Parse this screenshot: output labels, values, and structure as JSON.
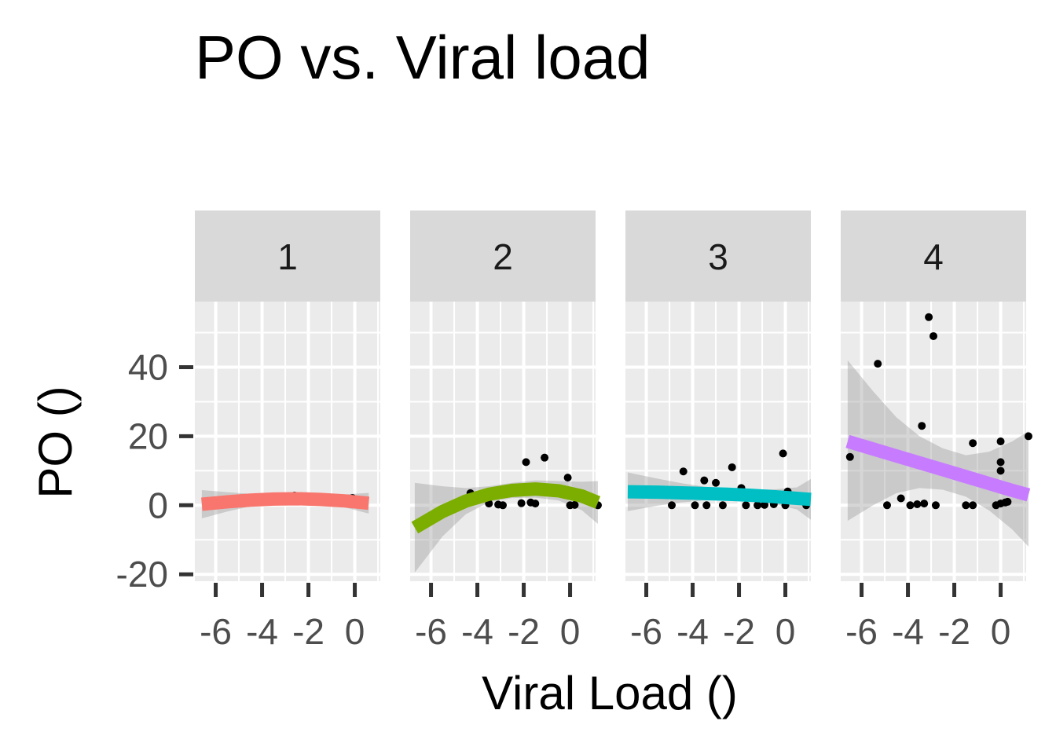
{
  "chart_data": {
    "type": "scatter",
    "title": "PO vs. Viral load",
    "xlabel": "Viral Load ()",
    "ylabel": "PO ()",
    "xlim": [
      -6.9,
      1.1
    ],
    "ylim": [
      -22,
      59
    ],
    "x_ticks": [
      -6,
      -4,
      -2,
      0
    ],
    "y_ticks": [
      -20,
      0,
      20,
      40
    ],
    "grid": true,
    "facets": [
      {
        "label": "1",
        "color": "#F8766D",
        "points": [
          [
            -3.9,
            2.2
          ],
          [
            -2.6,
            2.8
          ],
          [
            -2.1,
            2.6
          ],
          [
            -0.1,
            2.1
          ]
        ],
        "fit": [
          [
            -6.6,
            0.3
          ],
          [
            -5.5,
            1.0
          ],
          [
            -4.5,
            1.5
          ],
          [
            -3.5,
            1.8
          ],
          [
            -2.5,
            1.9
          ],
          [
            -1.5,
            1.7
          ],
          [
            -0.5,
            1.3
          ],
          [
            0.6,
            0.6
          ]
        ],
        "band_upper": [
          [
            -6.6,
            4.4
          ],
          [
            -5.5,
            3.8
          ],
          [
            -4.5,
            3.3
          ],
          [
            -3.5,
            3.1
          ],
          [
            -2.5,
            3.1
          ],
          [
            -1.5,
            3.0
          ],
          [
            -0.5,
            3.1
          ],
          [
            0.6,
            3.6
          ]
        ],
        "band_lower": [
          [
            -6.6,
            -3.8
          ],
          [
            -5.5,
            -1.8
          ],
          [
            -4.5,
            -0.3
          ],
          [
            -3.5,
            0.5
          ],
          [
            -2.5,
            0.7
          ],
          [
            -1.5,
            0.4
          ],
          [
            -0.5,
            -0.5
          ],
          [
            0.6,
            -2.4
          ]
        ]
      },
      {
        "label": "2",
        "color": "#7CAE00",
        "points": [
          [
            -4.3,
            3.5
          ],
          [
            -3.5,
            0.5
          ],
          [
            -3.1,
            0.2
          ],
          [
            -2.9,
            0.0
          ],
          [
            -2.1,
            0.6
          ],
          [
            -1.9,
            12.5
          ],
          [
            -1.7,
            0.8
          ],
          [
            -1.5,
            0.5
          ],
          [
            -1.1,
            13.8
          ],
          [
            -0.1,
            8.0
          ],
          [
            0.0,
            0.0
          ],
          [
            0.2,
            0.1
          ],
          [
            1.2,
            0.0
          ]
        ],
        "fit": [
          [
            -6.7,
            -6.5
          ],
          [
            -5.5,
            -1.8
          ],
          [
            -4.5,
            1.2
          ],
          [
            -3.5,
            3.2
          ],
          [
            -2.5,
            4.3
          ],
          [
            -1.5,
            4.7
          ],
          [
            -0.5,
            4.2
          ],
          [
            0.5,
            2.7
          ],
          [
            1.2,
            0.8
          ]
        ],
        "band_upper": [
          [
            -6.7,
            6.5
          ],
          [
            -5.5,
            5.5
          ],
          [
            -4.5,
            5.0
          ],
          [
            -3.5,
            5.5
          ],
          [
            -2.5,
            6.5
          ],
          [
            -1.5,
            7.2
          ],
          [
            -0.5,
            7.0
          ],
          [
            0.5,
            6.8
          ],
          [
            1.2,
            7.0
          ]
        ],
        "band_lower": [
          [
            -6.7,
            -19.5
          ],
          [
            -5.5,
            -9.0
          ],
          [
            -4.5,
            -2.6
          ],
          [
            -3.5,
            0.9
          ],
          [
            -2.5,
            2.1
          ],
          [
            -1.5,
            2.2
          ],
          [
            -0.5,
            1.4
          ],
          [
            0.5,
            -1.4
          ],
          [
            1.2,
            -5.4
          ]
        ]
      },
      {
        "label": "3",
        "color": "#00BFC4",
        "points": [
          [
            -4.9,
            0.0
          ],
          [
            -4.4,
            9.8
          ],
          [
            -3.9,
            0.0
          ],
          [
            -3.5,
            7.2
          ],
          [
            -3.4,
            0.0
          ],
          [
            -3.0,
            6.5
          ],
          [
            -2.7,
            0.0
          ],
          [
            -2.3,
            11.0
          ],
          [
            -1.9,
            5.0
          ],
          [
            -1.7,
            0.0
          ],
          [
            -1.2,
            0.0
          ],
          [
            -0.9,
            0.1
          ],
          [
            -0.5,
            0.3
          ],
          [
            -0.1,
            15.0
          ],
          [
            0.0,
            0.0
          ],
          [
            0.1,
            4.0
          ],
          [
            0.9,
            0.0
          ]
        ],
        "fit": [
          [
            -6.8,
            3.9
          ],
          [
            -5.5,
            3.8
          ],
          [
            -4.5,
            3.6
          ],
          [
            -3.5,
            3.4
          ],
          [
            -2.5,
            3.2
          ],
          [
            -1.5,
            2.9
          ],
          [
            -0.5,
            2.5
          ],
          [
            0.5,
            2.0
          ],
          [
            1.1,
            1.7
          ]
        ],
        "band_upper": [
          [
            -6.8,
            9.5
          ],
          [
            -5.5,
            7.7
          ],
          [
            -4.5,
            6.4
          ],
          [
            -3.5,
            5.4
          ],
          [
            -2.5,
            4.8
          ],
          [
            -1.5,
            4.5
          ],
          [
            -0.5,
            4.6
          ],
          [
            0.5,
            5.2
          ],
          [
            1.1,
            7.6
          ]
        ],
        "band_lower": [
          [
            -6.8,
            -1.7
          ],
          [
            -5.5,
            -0.1
          ],
          [
            -4.5,
            0.8
          ],
          [
            -3.5,
            1.4
          ],
          [
            -2.5,
            1.6
          ],
          [
            -1.5,
            1.3
          ],
          [
            -0.5,
            0.4
          ],
          [
            0.5,
            -1.2
          ],
          [
            1.1,
            -4.2
          ]
        ]
      },
      {
        "label": "4",
        "color": "#C77CFF",
        "points": [
          [
            -6.5,
            14.0
          ],
          [
            -5.3,
            41.0
          ],
          [
            -4.9,
            0.0
          ],
          [
            -4.3,
            2.0
          ],
          [
            -3.9,
            0.0
          ],
          [
            -3.6,
            0.3
          ],
          [
            -3.4,
            23.0
          ],
          [
            -3.3,
            0.5
          ],
          [
            -3.1,
            54.5
          ],
          [
            -2.9,
            49.0
          ],
          [
            -2.8,
            0.0
          ],
          [
            -1.5,
            0.0
          ],
          [
            -1.2,
            18.0
          ],
          [
            -1.2,
            0.0
          ],
          [
            -0.2,
            0.0
          ],
          [
            0.0,
            0.5
          ],
          [
            0.0,
            12.5
          ],
          [
            0.0,
            10.0
          ],
          [
            0.0,
            18.5
          ],
          [
            0.2,
            0.8
          ],
          [
            0.3,
            1.0
          ],
          [
            1.2,
            20.0
          ]
        ],
        "fit": [
          [
            -6.6,
            18.5
          ],
          [
            -5.5,
            16.3
          ],
          [
            -4.5,
            14.3
          ],
          [
            -3.5,
            12.3
          ],
          [
            -2.5,
            10.3
          ],
          [
            -1.5,
            8.3
          ],
          [
            -0.5,
            6.3
          ],
          [
            0.5,
            4.3
          ],
          [
            1.2,
            3.0
          ]
        ],
        "band_upper": [
          [
            -6.6,
            42.0
          ],
          [
            -5.5,
            33.0
          ],
          [
            -4.5,
            25.5
          ],
          [
            -3.5,
            20.0
          ],
          [
            -2.5,
            16.5
          ],
          [
            -1.5,
            14.5
          ],
          [
            -0.5,
            15.5
          ],
          [
            0.5,
            18.5
          ],
          [
            1.2,
            21.5
          ]
        ],
        "band_lower": [
          [
            -6.6,
            -4.5
          ],
          [
            -5.5,
            0.0
          ],
          [
            -4.5,
            3.5
          ],
          [
            -3.5,
            5.0
          ],
          [
            -2.5,
            4.5
          ],
          [
            -1.5,
            2.5
          ],
          [
            -0.5,
            -1.5
          ],
          [
            0.5,
            -7.0
          ],
          [
            1.2,
            -12.0
          ]
        ]
      }
    ]
  }
}
